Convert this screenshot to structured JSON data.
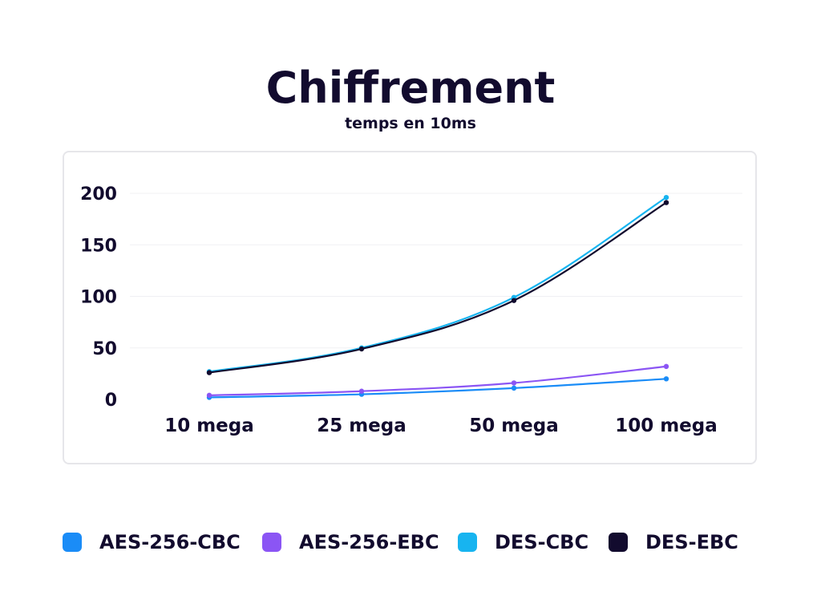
{
  "header": {
    "title": "Chiffrement",
    "subtitle": "temps en 10ms"
  },
  "chart_data": {
    "type": "line",
    "title": "Chiffrement",
    "subtitle": "temps en 10ms",
    "xlabel": "",
    "ylabel": "",
    "categories": [
      "10 mega",
      "25 mega",
      "50 mega",
      "100 mega"
    ],
    "yticks": [
      "0",
      "50",
      "100",
      "150",
      "200"
    ],
    "ylim": [
      0,
      200
    ],
    "grid": true,
    "legend_position": "bottom",
    "series": [
      {
        "name": "AES-256-CBC",
        "color": "#1a8cf7",
        "values": [
          2,
          5,
          11,
          20
        ]
      },
      {
        "name": "AES-256-EBC",
        "color": "#8b55f4",
        "values": [
          4,
          8,
          16,
          32
        ]
      },
      {
        "name": "DES-CBC",
        "color": "#17b4f0",
        "values": [
          27,
          50,
          99,
          196
        ]
      },
      {
        "name": "DES-EBC",
        "color": "#120b2e",
        "values": [
          26,
          49,
          96,
          191
        ]
      }
    ]
  }
}
